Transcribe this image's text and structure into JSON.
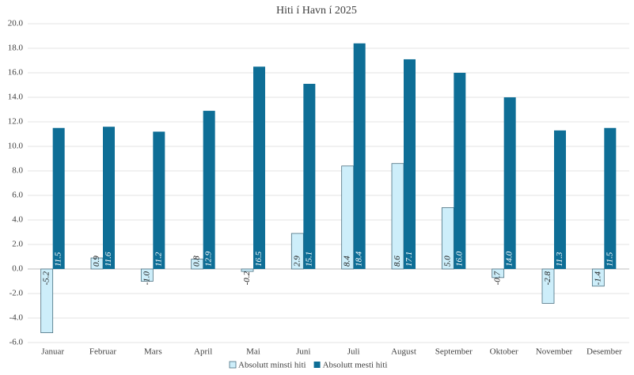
{
  "chart_data": {
    "type": "bar",
    "title": "Hiti í Havn í 2025",
    "categories": [
      "Januar",
      "Februar",
      "Mars",
      "April",
      "Mai",
      "Juni",
      "Juli",
      "August",
      "September",
      "Oktober",
      "November",
      "Desember"
    ],
    "series": [
      {
        "name": "Absolutt minsti hiti",
        "color": "#cdeefa",
        "values": [
          -5.2,
          0.9,
          -1.0,
          0.8,
          -0.2,
          2.9,
          8.4,
          8.6,
          5.0,
          -0.7,
          -2.8,
          -1.4
        ],
        "value_labels": [
          "-5.2",
          "0.9",
          "-1.0",
          "0.8",
          "-0.2",
          "2.9",
          "8.4",
          "8.6",
          "5.0",
          "-0.7",
          "-2.8",
          "-1.4"
        ]
      },
      {
        "name": "Absolutt mesti hiti",
        "color": "#0e6e96",
        "values": [
          11.5,
          11.6,
          11.2,
          12.9,
          16.5,
          15.1,
          18.4,
          17.1,
          16.0,
          14.0,
          11.3,
          11.5
        ],
        "value_labels": [
          "11.5",
          "11.6",
          "11.2",
          "12.9",
          "16.5",
          "15.1",
          "18.4",
          "17.1",
          "16.0",
          "14.0",
          "11.3",
          "11.5"
        ]
      }
    ],
    "ylim": [
      -6,
      20
    ],
    "yticks": [
      {
        "value": -6,
        "label": "-6.0"
      },
      {
        "value": -4,
        "label": "-4.0"
      },
      {
        "value": -2,
        "label": "-2.0"
      },
      {
        "value": 0,
        "label": "0.0"
      },
      {
        "value": 2,
        "label": "2.0"
      },
      {
        "value": 4,
        "label": "4.0"
      },
      {
        "value": 6,
        "label": "6.0"
      },
      {
        "value": 8,
        "label": "8.0"
      },
      {
        "value": 10,
        "label": "10.0"
      },
      {
        "value": 12,
        "label": "12.0"
      },
      {
        "value": 14,
        "label": "14.0"
      },
      {
        "value": 16,
        "label": "16.0"
      },
      {
        "value": 18,
        "label": "18.0"
      },
      {
        "value": 20,
        "label": "20.0"
      }
    ],
    "grid": true,
    "legend": "bottom"
  }
}
